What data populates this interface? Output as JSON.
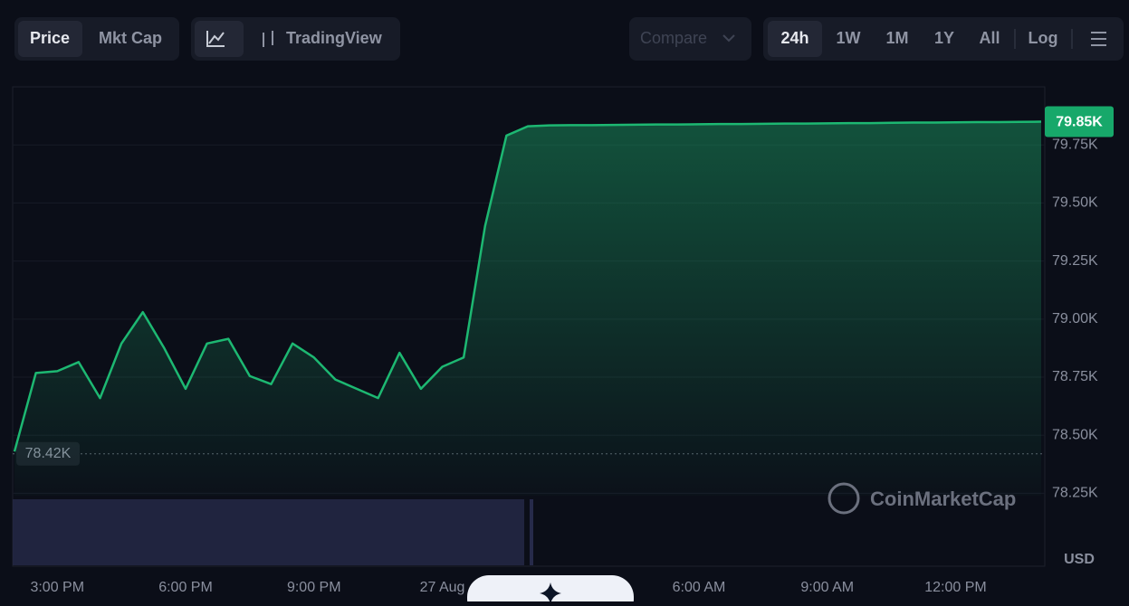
{
  "ui": {
    "tabs": [
      "Price",
      "Mkt Cap"
    ],
    "tradingview": "TradingView",
    "compare": "Compare",
    "ranges": [
      "24h",
      "1W",
      "1M",
      "1Y",
      "All"
    ],
    "log": "Log",
    "watermark": "CoinMarketCap",
    "currency": "USD"
  },
  "chart_data": {
    "type": "line",
    "categories": [
      null,
      null,
      "3:00 PM",
      null,
      null,
      null,
      null,
      null,
      "6:00 PM",
      null,
      null,
      null,
      null,
      null,
      "9:00 PM",
      null,
      null,
      null,
      null,
      null,
      "27 Aug",
      null,
      null,
      null,
      null,
      null,
      null,
      null,
      null,
      null,
      null,
      null,
      "6:00 AM",
      null,
      null,
      null,
      null,
      null,
      "9:00 AM",
      null,
      null,
      null,
      null,
      null,
      "12:00 PM",
      null,
      null,
      null,
      null
    ],
    "values": [
      78430,
      78768,
      78776,
      78815,
      78660,
      78895,
      79030,
      78875,
      78700,
      78895,
      78915,
      78755,
      78720,
      78895,
      78835,
      78740,
      78700,
      78660,
      78855,
      78700,
      78795,
      78835,
      79400,
      79790,
      79830,
      79834,
      79835,
      79835,
      79836,
      79837,
      79838,
      79838,
      79839,
      79840,
      79840,
      79841,
      79842,
      79842,
      79843,
      79844,
      79844,
      79845,
      79846,
      79846,
      79847,
      79848,
      79848,
      79849,
      79850
    ],
    "color": "#1db872",
    "ylim": [
      78240,
      80000
    ],
    "yticks": [
      {
        "value": 78250,
        "label": "78.25K"
      },
      {
        "value": 78500,
        "label": "78.50K"
      },
      {
        "value": 78750,
        "label": "78.75K"
      },
      {
        "value": 79000,
        "label": "79.00K"
      },
      {
        "value": 79250,
        "label": "79.25K"
      },
      {
        "value": 79500,
        "label": "79.50K"
      },
      {
        "value": 79750,
        "label": "79.75K"
      }
    ],
    "current_price": {
      "value": 79850,
      "label": "79.85K"
    },
    "start_price": {
      "value": 78420,
      "label": "78.42K"
    },
    "grid": true
  }
}
